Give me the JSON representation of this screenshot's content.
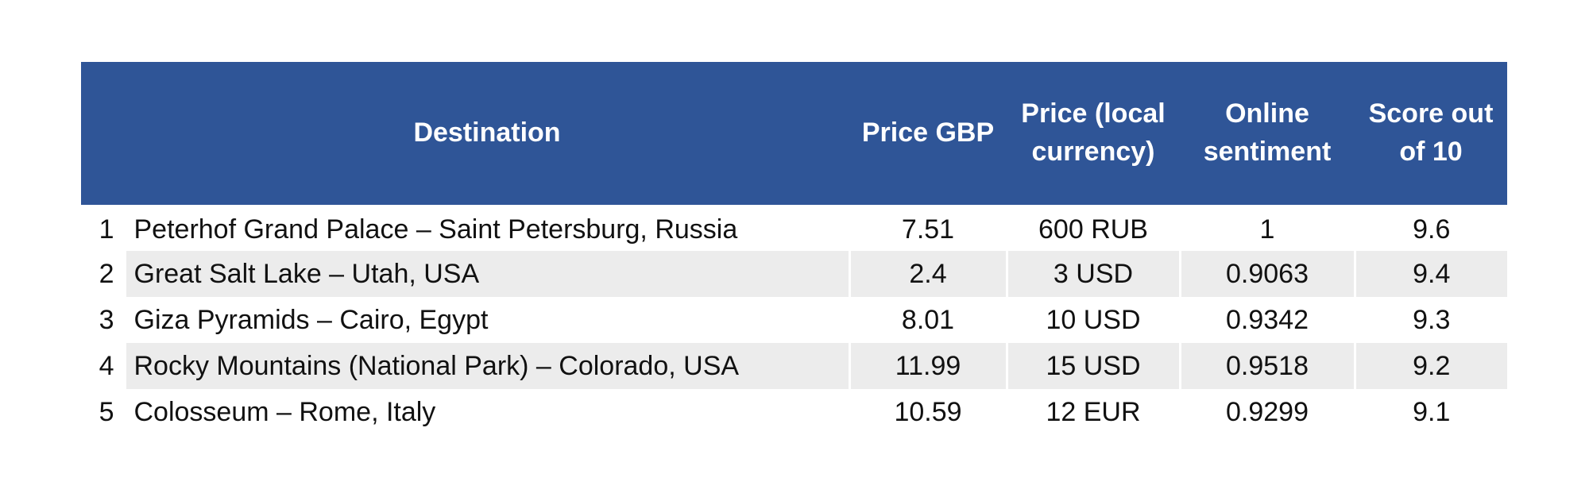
{
  "chart_data": {
    "type": "table",
    "columns": [
      "",
      "Destination",
      "Price GBP",
      "Price (local currency)",
      "Online sentiment",
      "Score out of 10"
    ],
    "rows": [
      {
        "rank": "1",
        "destination": "Peterhof Grand Palace – Saint Petersburg, Russia",
        "price_gbp": "7.51",
        "price_local": "600 RUB",
        "sentiment": "1",
        "score": "9.6"
      },
      {
        "rank": "2",
        "destination": "Great Salt Lake – Utah, USA",
        "price_gbp": "2.4",
        "price_local": "3 USD",
        "sentiment": "0.9063",
        "score": "9.4"
      },
      {
        "rank": "3",
        "destination": "Giza Pyramids – Cairo, Egypt",
        "price_gbp": "8.01",
        "price_local": "10 USD",
        "sentiment": "0.9342",
        "score": "9.3"
      },
      {
        "rank": "4",
        "destination": "Rocky Mountains (National Park) – Colorado, USA",
        "price_gbp": "11.99",
        "price_local": "15 USD",
        "sentiment": "0.9518",
        "score": "9.2"
      },
      {
        "rank": "5",
        "destination": "Colosseum – Rome, Italy",
        "price_gbp": "10.59",
        "price_local": "12 EUR",
        "sentiment": "0.9299",
        "score": "9.1"
      }
    ],
    "header_color": "#2f5597",
    "stripe_color": "#ececec"
  }
}
